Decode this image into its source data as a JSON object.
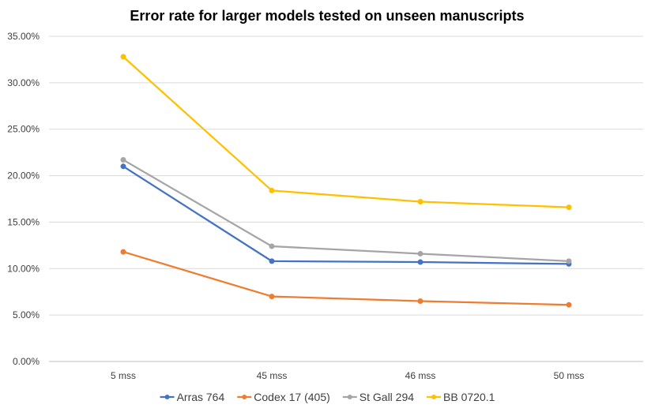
{
  "chart_data": {
    "type": "line",
    "title": "Error rate for larger models tested on unseen manuscripts",
    "xlabel": "",
    "ylabel": "",
    "categories": [
      "5 mss",
      "45 mss",
      "46 mss",
      "50 mss"
    ],
    "y_ticks": [
      "0.00%",
      "5.00%",
      "10.00%",
      "15.00%",
      "20.00%",
      "25.00%",
      "30.00%",
      "35.00%"
    ],
    "ylim": [
      0,
      35
    ],
    "y_unit": "percent",
    "grid": "horizontal",
    "legend_position": "bottom",
    "series": [
      {
        "name": "Arras 764",
        "color": "#4472C4",
        "values": [
          21.0,
          10.8,
          10.7,
          10.5
        ]
      },
      {
        "name": "Codex 17 (405)",
        "color": "#ED7D31",
        "values": [
          11.8,
          7.0,
          6.5,
          6.1
        ]
      },
      {
        "name": "St Gall 294",
        "color": "#A5A5A5",
        "values": [
          21.7,
          12.4,
          11.6,
          10.8
        ]
      },
      {
        "name": "BB 0720.1",
        "color": "#FFC000",
        "values": [
          32.8,
          18.4,
          17.2,
          16.6
        ]
      }
    ]
  }
}
